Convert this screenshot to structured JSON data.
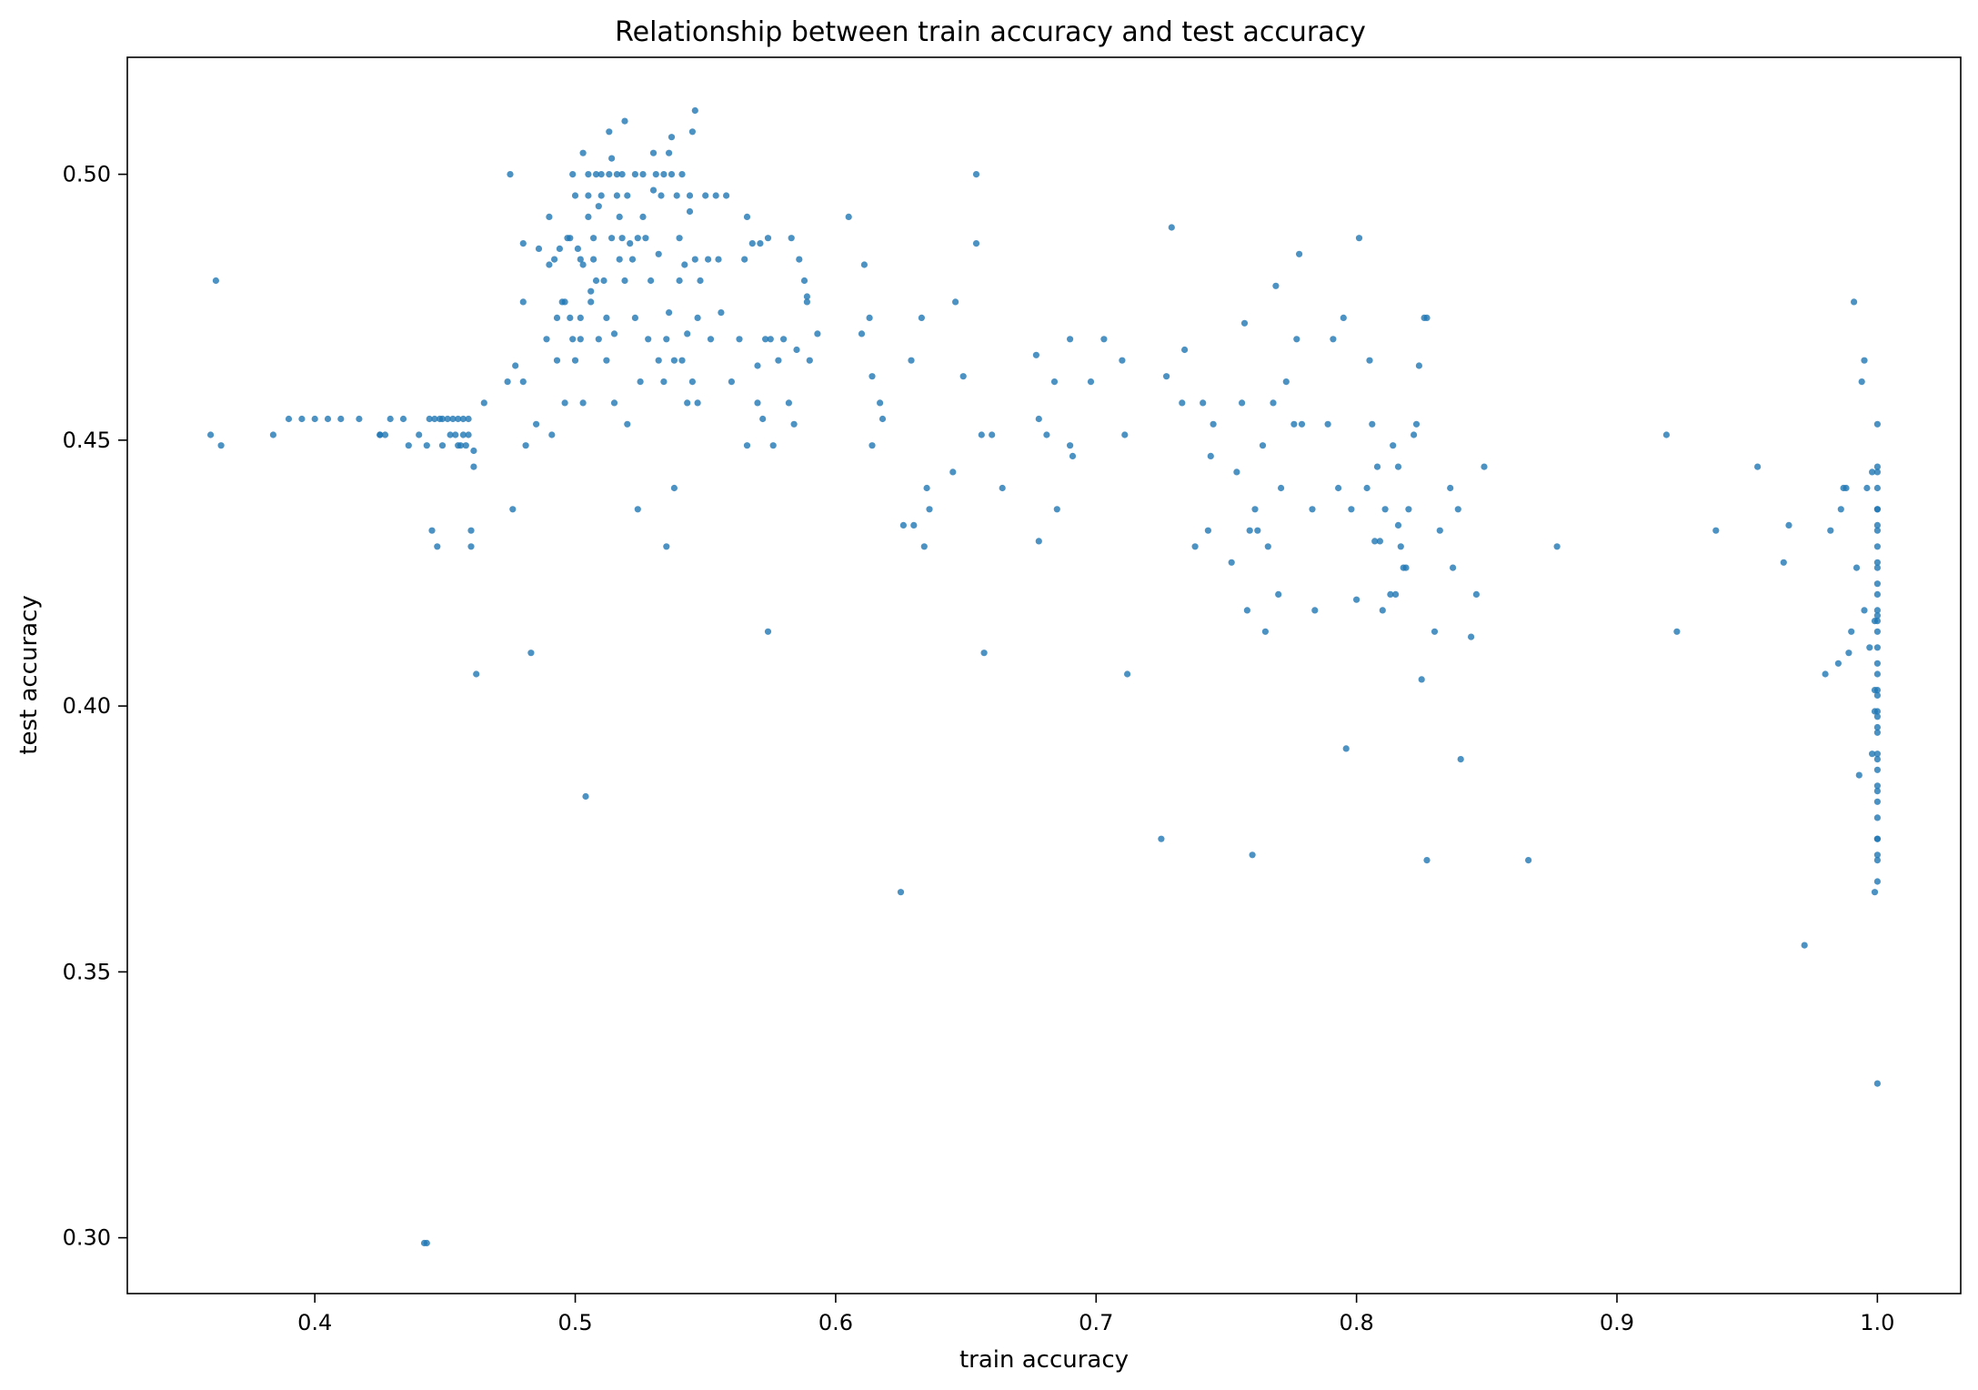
{
  "chart_data": {
    "type": "scatter",
    "title": "Relationship between train accuracy and test accuracy",
    "xlabel": "train accuracy",
    "ylabel": "test accuracy",
    "xlim": [
      0.328,
      1.032
    ],
    "ylim": [
      0.2895,
      0.522
    ],
    "xticks": [
      0.4,
      0.5,
      0.6,
      0.7,
      0.8,
      0.9,
      1.0
    ],
    "xtick_labels": [
      "0.4",
      "0.5",
      "0.6",
      "0.7",
      "0.8",
      "0.9",
      "1.0"
    ],
    "yticks": [
      0.3,
      0.35,
      0.4,
      0.45,
      0.5
    ],
    "ytick_labels": [
      "0.30",
      "0.35",
      "0.40",
      "0.45",
      "0.50"
    ],
    "grid": false,
    "legend": "none",
    "point_color": "#1f77b4",
    "points": [
      [
        0.36,
        0.451
      ],
      [
        0.362,
        0.48
      ],
      [
        0.364,
        0.449
      ],
      [
        0.384,
        0.451
      ],
      [
        0.39,
        0.454
      ],
      [
        0.395,
        0.454
      ],
      [
        0.4,
        0.454
      ],
      [
        0.405,
        0.454
      ],
      [
        0.41,
        0.454
      ],
      [
        0.417,
        0.454
      ],
      [
        0.425,
        0.451
      ],
      [
        0.425,
        0.451
      ],
      [
        0.427,
        0.451
      ],
      [
        0.429,
        0.454
      ],
      [
        0.434,
        0.454
      ],
      [
        0.436,
        0.449
      ],
      [
        0.44,
        0.451
      ],
      [
        0.442,
        0.299
      ],
      [
        0.443,
        0.299
      ],
      [
        0.443,
        0.449
      ],
      [
        0.444,
        0.454
      ],
      [
        0.446,
        0.454
      ],
      [
        0.448,
        0.454
      ],
      [
        0.449,
        0.454
      ],
      [
        0.451,
        0.454
      ],
      [
        0.453,
        0.454
      ],
      [
        0.455,
        0.454
      ],
      [
        0.457,
        0.454
      ],
      [
        0.459,
        0.454
      ],
      [
        0.445,
        0.433
      ],
      [
        0.447,
        0.43
      ],
      [
        0.449,
        0.449
      ],
      [
        0.452,
        0.451
      ],
      [
        0.454,
        0.451
      ],
      [
        0.456,
        0.449
      ],
      [
        0.458,
        0.449
      ],
      [
        0.457,
        0.451
      ],
      [
        0.459,
        0.451
      ],
      [
        0.455,
        0.449
      ],
      [
        0.46,
        0.433
      ],
      [
        0.46,
        0.43
      ],
      [
        0.461,
        0.448
      ],
      [
        0.461,
        0.445
      ],
      [
        0.462,
        0.406
      ],
      [
        0.465,
        0.457
      ],
      [
        0.474,
        0.461
      ],
      [
        0.475,
        0.5
      ],
      [
        0.476,
        0.437
      ],
      [
        0.477,
        0.464
      ],
      [
        0.48,
        0.461
      ],
      [
        0.48,
        0.487
      ],
      [
        0.48,
        0.476
      ],
      [
        0.481,
        0.449
      ],
      [
        0.483,
        0.41
      ],
      [
        0.485,
        0.453
      ],
      [
        0.486,
        0.486
      ],
      [
        0.489,
        0.469
      ],
      [
        0.49,
        0.492
      ],
      [
        0.49,
        0.483
      ],
      [
        0.491,
        0.451
      ],
      [
        0.492,
        0.484
      ],
      [
        0.493,
        0.473
      ],
      [
        0.493,
        0.465
      ],
      [
        0.494,
        0.486
      ],
      [
        0.495,
        0.476
      ],
      [
        0.496,
        0.476
      ],
      [
        0.496,
        0.457
      ],
      [
        0.497,
        0.488
      ],
      [
        0.498,
        0.488
      ],
      [
        0.498,
        0.473
      ],
      [
        0.499,
        0.469
      ],
      [
        0.499,
        0.5
      ],
      [
        0.5,
        0.496
      ],
      [
        0.5,
        0.465
      ],
      [
        0.501,
        0.486
      ],
      [
        0.502,
        0.484
      ],
      [
        0.502,
        0.473
      ],
      [
        0.502,
        0.469
      ],
      [
        0.503,
        0.504
      ],
      [
        0.503,
        0.483
      ],
      [
        0.503,
        0.457
      ],
      [
        0.504,
        0.383
      ],
      [
        0.505,
        0.5
      ],
      [
        0.505,
        0.492
      ],
      [
        0.505,
        0.496
      ],
      [
        0.506,
        0.476
      ],
      [
        0.506,
        0.478
      ],
      [
        0.507,
        0.488
      ],
      [
        0.507,
        0.484
      ],
      [
        0.508,
        0.5
      ],
      [
        0.508,
        0.48
      ],
      [
        0.509,
        0.494
      ],
      [
        0.509,
        0.469
      ],
      [
        0.51,
        0.5
      ],
      [
        0.51,
        0.496
      ],
      [
        0.511,
        0.48
      ],
      [
        0.512,
        0.473
      ],
      [
        0.512,
        0.465
      ],
      [
        0.513,
        0.508
      ],
      [
        0.513,
        0.5
      ],
      [
        0.514,
        0.503
      ],
      [
        0.514,
        0.488
      ],
      [
        0.515,
        0.47
      ],
      [
        0.515,
        0.457
      ],
      [
        0.516,
        0.5
      ],
      [
        0.516,
        0.496
      ],
      [
        0.517,
        0.492
      ],
      [
        0.517,
        0.484
      ],
      [
        0.518,
        0.5
      ],
      [
        0.518,
        0.488
      ],
      [
        0.519,
        0.51
      ],
      [
        0.519,
        0.48
      ],
      [
        0.52,
        0.496
      ],
      [
        0.52,
        0.453
      ],
      [
        0.521,
        0.487
      ],
      [
        0.522,
        0.484
      ],
      [
        0.523,
        0.5
      ],
      [
        0.523,
        0.473
      ],
      [
        0.524,
        0.488
      ],
      [
        0.524,
        0.437
      ],
      [
        0.525,
        0.461
      ],
      [
        0.526,
        0.5
      ],
      [
        0.526,
        0.492
      ],
      [
        0.527,
        0.488
      ],
      [
        0.528,
        0.469
      ],
      [
        0.529,
        0.48
      ],
      [
        0.53,
        0.504
      ],
      [
        0.53,
        0.497
      ],
      [
        0.531,
        0.5
      ],
      [
        0.532,
        0.485
      ],
      [
        0.532,
        0.465
      ],
      [
        0.533,
        0.496
      ],
      [
        0.534,
        0.5
      ],
      [
        0.534,
        0.461
      ],
      [
        0.535,
        0.469
      ],
      [
        0.535,
        0.43
      ],
      [
        0.536,
        0.504
      ],
      [
        0.536,
        0.474
      ],
      [
        0.537,
        0.507
      ],
      [
        0.537,
        0.5
      ],
      [
        0.538,
        0.465
      ],
      [
        0.538,
        0.441
      ],
      [
        0.539,
        0.496
      ],
      [
        0.54,
        0.488
      ],
      [
        0.54,
        0.48
      ],
      [
        0.541,
        0.5
      ],
      [
        0.541,
        0.465
      ],
      [
        0.542,
        0.483
      ],
      [
        0.543,
        0.47
      ],
      [
        0.543,
        0.457
      ],
      [
        0.544,
        0.496
      ],
      [
        0.544,
        0.493
      ],
      [
        0.545,
        0.508
      ],
      [
        0.545,
        0.461
      ],
      [
        0.546,
        0.512
      ],
      [
        0.546,
        0.484
      ],
      [
        0.547,
        0.473
      ],
      [
        0.547,
        0.457
      ],
      [
        0.548,
        0.48
      ],
      [
        0.55,
        0.496
      ],
      [
        0.551,
        0.484
      ],
      [
        0.552,
        0.469
      ],
      [
        0.554,
        0.496
      ],
      [
        0.555,
        0.484
      ],
      [
        0.556,
        0.474
      ],
      [
        0.558,
        0.496
      ],
      [
        0.56,
        0.461
      ],
      [
        0.563,
        0.469
      ],
      [
        0.565,
        0.484
      ],
      [
        0.566,
        0.492
      ],
      [
        0.566,
        0.449
      ],
      [
        0.568,
        0.487
      ],
      [
        0.57,
        0.457
      ],
      [
        0.57,
        0.464
      ],
      [
        0.571,
        0.487
      ],
      [
        0.572,
        0.454
      ],
      [
        0.573,
        0.469
      ],
      [
        0.574,
        0.414
      ],
      [
        0.574,
        0.488
      ],
      [
        0.575,
        0.469
      ],
      [
        0.576,
        0.449
      ],
      [
        0.578,
        0.465
      ],
      [
        0.58,
        0.469
      ],
      [
        0.582,
        0.457
      ],
      [
        0.583,
        0.488
      ],
      [
        0.584,
        0.453
      ],
      [
        0.585,
        0.467
      ],
      [
        0.586,
        0.484
      ],
      [
        0.588,
        0.48
      ],
      [
        0.589,
        0.477
      ],
      [
        0.589,
        0.476
      ],
      [
        0.59,
        0.465
      ],
      [
        0.593,
        0.47
      ],
      [
        0.605,
        0.492
      ],
      [
        0.61,
        0.47
      ],
      [
        0.611,
        0.483
      ],
      [
        0.613,
        0.473
      ],
      [
        0.614,
        0.462
      ],
      [
        0.614,
        0.449
      ],
      [
        0.617,
        0.457
      ],
      [
        0.618,
        0.454
      ],
      [
        0.625,
        0.365
      ],
      [
        0.626,
        0.434
      ],
      [
        0.629,
        0.465
      ],
      [
        0.63,
        0.434
      ],
      [
        0.633,
        0.473
      ],
      [
        0.634,
        0.43
      ],
      [
        0.635,
        0.441
      ],
      [
        0.636,
        0.437
      ],
      [
        0.645,
        0.444
      ],
      [
        0.646,
        0.476
      ],
      [
        0.649,
        0.462
      ],
      [
        0.654,
        0.5
      ],
      [
        0.654,
        0.487
      ],
      [
        0.656,
        0.451
      ],
      [
        0.657,
        0.41
      ],
      [
        0.66,
        0.451
      ],
      [
        0.664,
        0.441
      ],
      [
        0.677,
        0.466
      ],
      [
        0.678,
        0.454
      ],
      [
        0.678,
        0.431
      ],
      [
        0.681,
        0.451
      ],
      [
        0.684,
        0.461
      ],
      [
        0.685,
        0.437
      ],
      [
        0.69,
        0.449
      ],
      [
        0.69,
        0.469
      ],
      [
        0.691,
        0.447
      ],
      [
        0.698,
        0.461
      ],
      [
        0.703,
        0.469
      ],
      [
        0.71,
        0.465
      ],
      [
        0.711,
        0.451
      ],
      [
        0.712,
        0.406
      ],
      [
        0.725,
        0.375
      ],
      [
        0.727,
        0.462
      ],
      [
        0.729,
        0.49
      ],
      [
        0.733,
        0.457
      ],
      [
        0.734,
        0.467
      ],
      [
        0.738,
        0.43
      ],
      [
        0.741,
        0.457
      ],
      [
        0.743,
        0.433
      ],
      [
        0.744,
        0.447
      ],
      [
        0.745,
        0.453
      ],
      [
        0.752,
        0.427
      ],
      [
        0.754,
        0.444
      ],
      [
        0.756,
        0.457
      ],
      [
        0.757,
        0.472
      ],
      [
        0.758,
        0.418
      ],
      [
        0.759,
        0.433
      ],
      [
        0.76,
        0.372
      ],
      [
        0.761,
        0.437
      ],
      [
        0.762,
        0.433
      ],
      [
        0.764,
        0.449
      ],
      [
        0.765,
        0.414
      ],
      [
        0.766,
        0.43
      ],
      [
        0.768,
        0.457
      ],
      [
        0.769,
        0.479
      ],
      [
        0.77,
        0.421
      ],
      [
        0.771,
        0.441
      ],
      [
        0.773,
        0.461
      ],
      [
        0.776,
        0.453
      ],
      [
        0.777,
        0.469
      ],
      [
        0.778,
        0.485
      ],
      [
        0.779,
        0.453
      ],
      [
        0.783,
        0.437
      ],
      [
        0.784,
        0.418
      ],
      [
        0.789,
        0.453
      ],
      [
        0.791,
        0.469
      ],
      [
        0.793,
        0.441
      ],
      [
        0.795,
        0.473
      ],
      [
        0.796,
        0.392
      ],
      [
        0.798,
        0.437
      ],
      [
        0.8,
        0.42
      ],
      [
        0.801,
        0.488
      ],
      [
        0.804,
        0.441
      ],
      [
        0.805,
        0.465
      ],
      [
        0.806,
        0.453
      ],
      [
        0.807,
        0.431
      ],
      [
        0.808,
        0.445
      ],
      [
        0.809,
        0.431
      ],
      [
        0.81,
        0.418
      ],
      [
        0.811,
        0.437
      ],
      [
        0.813,
        0.421
      ],
      [
        0.814,
        0.449
      ],
      [
        0.815,
        0.421
      ],
      [
        0.816,
        0.445
      ],
      [
        0.816,
        0.434
      ],
      [
        0.817,
        0.43
      ],
      [
        0.818,
        0.426
      ],
      [
        0.819,
        0.426
      ],
      [
        0.82,
        0.437
      ],
      [
        0.822,
        0.451
      ],
      [
        0.823,
        0.453
      ],
      [
        0.824,
        0.464
      ],
      [
        0.825,
        0.405
      ],
      [
        0.826,
        0.473
      ],
      [
        0.827,
        0.473
      ],
      [
        0.827,
        0.371
      ],
      [
        0.83,
        0.414
      ],
      [
        0.832,
        0.433
      ],
      [
        0.836,
        0.441
      ],
      [
        0.837,
        0.426
      ],
      [
        0.839,
        0.437
      ],
      [
        0.84,
        0.39
      ],
      [
        0.844,
        0.413
      ],
      [
        0.846,
        0.421
      ],
      [
        0.849,
        0.445
      ],
      [
        0.866,
        0.371
      ],
      [
        0.877,
        0.43
      ],
      [
        0.919,
        0.451
      ],
      [
        0.923,
        0.414
      ],
      [
        0.938,
        0.433
      ],
      [
        0.954,
        0.445
      ],
      [
        0.964,
        0.427
      ],
      [
        0.966,
        0.434
      ],
      [
        0.972,
        0.355
      ],
      [
        0.98,
        0.406
      ],
      [
        0.982,
        0.433
      ],
      [
        0.985,
        0.408
      ],
      [
        0.986,
        0.437
      ],
      [
        0.987,
        0.441
      ],
      [
        0.988,
        0.441
      ],
      [
        0.989,
        0.41
      ],
      [
        0.99,
        0.414
      ],
      [
        0.991,
        0.476
      ],
      [
        0.992,
        0.426
      ],
      [
        0.993,
        0.387
      ],
      [
        0.994,
        0.461
      ],
      [
        0.995,
        0.418
      ],
      [
        0.995,
        0.465
      ],
      [
        0.996,
        0.441
      ],
      [
        0.997,
        0.411
      ],
      [
        0.998,
        0.444
      ],
      [
        0.998,
        0.391
      ],
      [
        0.999,
        0.365
      ],
      [
        0.999,
        0.399
      ],
      [
        0.999,
        0.403
      ],
      [
        0.999,
        0.416
      ],
      [
        1.0,
        0.453
      ],
      [
        1.0,
        0.445
      ],
      [
        1.0,
        0.444
      ],
      [
        1.0,
        0.441
      ],
      [
        1.0,
        0.437
      ],
      [
        1.0,
        0.437
      ],
      [
        1.0,
        0.434
      ],
      [
        1.0,
        0.433
      ],
      [
        1.0,
        0.43
      ],
      [
        1.0,
        0.427
      ],
      [
        1.0,
        0.426
      ],
      [
        1.0,
        0.423
      ],
      [
        1.0,
        0.421
      ],
      [
        1.0,
        0.418
      ],
      [
        1.0,
        0.417
      ],
      [
        1.0,
        0.416
      ],
      [
        1.0,
        0.414
      ],
      [
        1.0,
        0.411
      ],
      [
        1.0,
        0.408
      ],
      [
        1.0,
        0.406
      ],
      [
        1.0,
        0.403
      ],
      [
        1.0,
        0.402
      ],
      [
        1.0,
        0.399
      ],
      [
        1.0,
        0.398
      ],
      [
        1.0,
        0.396
      ],
      [
        1.0,
        0.395
      ],
      [
        1.0,
        0.391
      ],
      [
        1.0,
        0.39
      ],
      [
        1.0,
        0.388
      ],
      [
        1.0,
        0.385
      ],
      [
        1.0,
        0.384
      ],
      [
        1.0,
        0.382
      ],
      [
        1.0,
        0.379
      ],
      [
        1.0,
        0.375
      ],
      [
        1.0,
        0.375
      ],
      [
        1.0,
        0.372
      ],
      [
        1.0,
        0.371
      ],
      [
        1.0,
        0.367
      ],
      [
        1.0,
        0.329
      ]
    ]
  }
}
